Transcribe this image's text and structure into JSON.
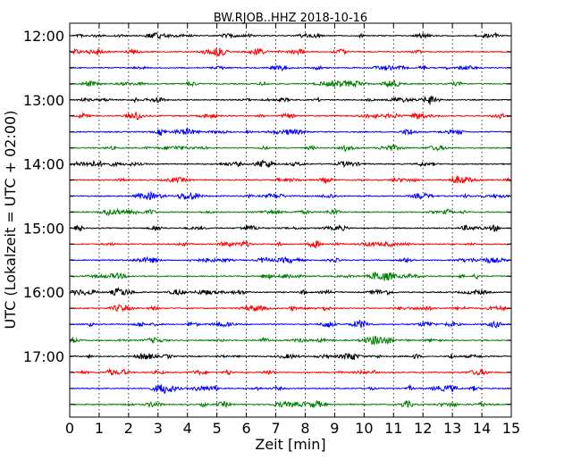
{
  "chart_data": {
    "type": "line",
    "title": "BW.RJOB..HHZ 2018-10-16",
    "xlabel": "Zeit  [min]",
    "ylabel": "UTC (Lokalzeit = UTC + 02:00)",
    "xlim": [
      0,
      15
    ],
    "x_ticks": [
      "0",
      "1",
      "2",
      "3",
      "4",
      "5",
      "6",
      "7",
      "8",
      "9",
      "10",
      "11",
      "12",
      "13",
      "14",
      "15"
    ],
    "y_tick_labels": [
      "12:00",
      "13:00",
      "14:00",
      "15:00",
      "16:00",
      "17:00"
    ],
    "trace_start_times": [
      "12:00",
      "12:15",
      "12:30",
      "12:45",
      "13:00",
      "13:15",
      "13:30",
      "13:45",
      "14:00",
      "14:15",
      "14:30",
      "14:45",
      "15:00",
      "15:15",
      "15:30",
      "15:45",
      "16:00",
      "16:15",
      "16:30",
      "16:45",
      "17:00",
      "17:15",
      "17:30",
      "17:45"
    ],
    "trace_colors": [
      "#000000",
      "#ff0000",
      "#0000ff",
      "#008000"
    ],
    "grid": {
      "x": "dotted",
      "y": "off"
    }
  }
}
